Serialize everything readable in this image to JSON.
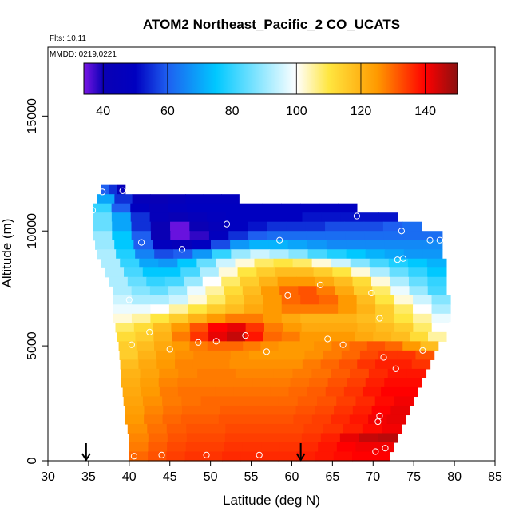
{
  "chart_data": {
    "type": "heatmap",
    "title": "ATOM2 Northeast_Pacific_2 CO_UCATS",
    "info_lines": [
      "Flts: 10,11",
      "MMDD: 0219,0221"
    ],
    "xlabel": "Latitude (deg N)",
    "ylabel": "Altitude (m)",
    "xlim": [
      30,
      85
    ],
    "ylim": [
      0,
      18000
    ],
    "x_ticks": [
      "30",
      "35",
      "40",
      "45",
      "50",
      "55",
      "60",
      "65",
      "70",
      "75",
      "80",
      "85"
    ],
    "y_ticks": [
      "0",
      "5000",
      "10000",
      "15000"
    ],
    "colorbar": {
      "range": [
        34,
        150
      ],
      "ticks": [
        "40",
        "60",
        "80",
        "100",
        "120",
        "140"
      ],
      "stops": [
        "#7b16e6",
        "#0a00b4",
        "#1e5ff0",
        "#00c8ff",
        "#ffffff",
        "#ffe640",
        "#ff9a00",
        "#ff0000",
        "#8b1010"
      ]
    },
    "colormap": [
      {
        "v": 34,
        "color": "#7b16e6"
      },
      {
        "v": 40,
        "color": "#0a00b4"
      },
      {
        "v": 50,
        "color": "#0000c0"
      },
      {
        "v": 60,
        "color": "#1e5ff0"
      },
      {
        "v": 75,
        "color": "#00c8ff"
      },
      {
        "v": 100,
        "color": "#ffffff"
      },
      {
        "v": 110,
        "color": "#ffe640"
      },
      {
        "v": 125,
        "color": "#ff9a00"
      },
      {
        "v": 140,
        "color": "#ff0000"
      },
      {
        "v": 150,
        "color": "#8b1010"
      }
    ],
    "profiles": [
      {
        "alt_bottom": 11600,
        "lat_min": 36.5,
        "lat_max": 39.5,
        "values": [
          60,
          55,
          45
        ]
      },
      {
        "alt_bottom": 11200,
        "lat_min": 36.0,
        "lat_max": 53.5,
        "values": [
          70,
          55,
          45,
          42,
          45,
          48,
          48,
          48
        ]
      },
      {
        "alt_bottom": 10800,
        "lat_min": 35.5,
        "lat_max": 68.0,
        "values": [
          80,
          60,
          50,
          45,
          48,
          50,
          50,
          50,
          50,
          50,
          50,
          50,
          50,
          50
        ]
      },
      {
        "alt_bottom": 10400,
        "lat_min": 35.5,
        "lat_max": 73.0,
        "values": [
          85,
          70,
          55,
          45,
          42,
          45,
          48,
          50,
          50,
          50,
          50,
          52,
          52,
          52,
          52,
          52
        ]
      },
      {
        "alt_bottom": 10000,
        "lat_min": 35.5,
        "lat_max": 76.0,
        "values": [
          85,
          70,
          55,
          40,
          35,
          40,
          45,
          50,
          52,
          55,
          55,
          55,
          58,
          58,
          58,
          60,
          62
        ]
      },
      {
        "alt_bottom": 9600,
        "lat_min": 35.5,
        "lat_max": 78.5,
        "values": [
          90,
          75,
          60,
          40,
          35,
          38,
          48,
          55,
          60,
          62,
          62,
          62,
          62,
          62,
          62,
          62,
          62,
          62
        ]
      },
      {
        "alt_bottom": 9200,
        "lat_min": 35.8,
        "lat_max": 78.5,
        "values": [
          90,
          75,
          60,
          48,
          45,
          50,
          58,
          68,
          72,
          72,
          70,
          68,
          66,
          66,
          66,
          66,
          66,
          66
        ]
      },
      {
        "alt_bottom": 8800,
        "lat_min": 36.0,
        "lat_max": 78.5,
        "values": [
          92,
          78,
          65,
          58,
          60,
          68,
          80,
          90,
          95,
          92,
          88,
          82,
          78,
          75,
          72,
          70,
          68,
          68
        ]
      },
      {
        "alt_bottom": 8400,
        "lat_min": 36.5,
        "lat_max": 79.0,
        "values": [
          92,
          80,
          70,
          68,
          75,
          85,
          95,
          102,
          108,
          110,
          108,
          102,
          95,
          88,
          82,
          78,
          75,
          72
        ]
      },
      {
        "alt_bottom": 8000,
        "lat_min": 37.0,
        "lat_max": 79.0,
        "values": [
          92,
          82,
          75,
          75,
          82,
          92,
          102,
          110,
          115,
          118,
          118,
          115,
          110,
          102,
          92,
          85,
          80,
          75
        ]
      },
      {
        "alt_bottom": 7600,
        "lat_min": 37.5,
        "lat_max": 79.0,
        "values": [
          92,
          85,
          80,
          82,
          90,
          100,
          108,
          115,
          120,
          125,
          125,
          122,
          118,
          112,
          102,
          92,
          85,
          80
        ]
      },
      {
        "alt_bottom": 7200,
        "lat_min": 38.0,
        "lat_max": 79.0,
        "values": [
          92,
          88,
          85,
          90,
          98,
          105,
          112,
          118,
          125,
          130,
          132,
          128,
          122,
          115,
          108,
          98,
          90,
          82
        ]
      },
      {
        "alt_bottom": 6800,
        "lat_min": 38.0,
        "lat_max": 79.5,
        "values": [
          95,
          92,
          92,
          95,
          102,
          108,
          115,
          120,
          125,
          130,
          132,
          130,
          125,
          118,
          110,
          102,
          95,
          88
        ]
      },
      {
        "alt_bottom": 6400,
        "lat_min": 38.0,
        "lat_max": 79.5,
        "values": [
          98,
          98,
          100,
          105,
          110,
          115,
          118,
          122,
          125,
          128,
          128,
          128,
          125,
          120,
          115,
          108,
          100,
          92
        ]
      },
      {
        "alt_bottom": 6000,
        "lat_min": 38.0,
        "lat_max": 79.5,
        "values": [
          102,
          105,
          110,
          115,
          120,
          125,
          128,
          128,
          125,
          122,
          120,
          120,
          120,
          118,
          115,
          110,
          105,
          98
        ]
      },
      {
        "alt_bottom": 5600,
        "lat_min": 38.3,
        "lat_max": 79.5,
        "values": [
          108,
          112,
          118,
          125,
          132,
          140,
          142,
          135,
          128,
          125,
          122,
          122,
          122,
          120,
          118,
          115,
          108,
          100
        ]
      },
      {
        "alt_bottom": 5200,
        "lat_min": 38.5,
        "lat_max": 79.0,
        "values": [
          112,
          115,
          120,
          128,
          135,
          142,
          145,
          138,
          130,
          128,
          125,
          125,
          125,
          122,
          120,
          118,
          112,
          105
        ]
      },
      {
        "alt_bottom": 4800,
        "lat_min": 38.7,
        "lat_max": 78.0,
        "values": [
          115,
          118,
          122,
          125,
          128,
          130,
          130,
          128,
          126,
          125,
          125,
          126,
          128,
          130,
          132,
          130,
          125,
          118
        ]
      },
      {
        "alt_bottom": 4400,
        "lat_min": 38.8,
        "lat_max": 77.5,
        "values": [
          115,
          120,
          124,
          126,
          127,
          127,
          126,
          125,
          125,
          125,
          126,
          128,
          130,
          133,
          135,
          135,
          132
        ]
      },
      {
        "alt_bottom": 4000,
        "lat_min": 38.9,
        "lat_max": 77.0,
        "values": [
          118,
          122,
          125,
          127,
          127,
          127,
          126,
          126,
          126,
          126,
          128,
          130,
          132,
          135,
          137,
          137,
          135
        ]
      },
      {
        "alt_bottom": 3600,
        "lat_min": 39.0,
        "lat_max": 76.5,
        "values": [
          120,
          123,
          126,
          127,
          128,
          128,
          127,
          127,
          127,
          128,
          129,
          131,
          133,
          136,
          138,
          138
        ]
      },
      {
        "alt_bottom": 3200,
        "lat_min": 39.0,
        "lat_max": 76.0,
        "values": [
          121,
          124,
          127,
          128,
          128,
          128,
          128,
          128,
          128,
          129,
          130,
          132,
          134,
          137,
          139,
          139
        ]
      },
      {
        "alt_bottom": 2800,
        "lat_min": 39.2,
        "lat_max": 75.5,
        "values": [
          122,
          125,
          128,
          129,
          129,
          129,
          129,
          129,
          129,
          130,
          131,
          133,
          135,
          138,
          140,
          140
        ]
      },
      {
        "alt_bottom": 2400,
        "lat_min": 39.3,
        "lat_max": 75.0,
        "values": [
          123,
          126,
          128,
          129,
          130,
          130,
          130,
          130,
          130,
          131,
          132,
          134,
          136,
          139,
          141
        ]
      },
      {
        "alt_bottom": 2000,
        "lat_min": 39.5,
        "lat_max": 74.5,
        "values": [
          124,
          127,
          129,
          130,
          130,
          131,
          131,
          131,
          131,
          132,
          133,
          135,
          137,
          140,
          142
        ]
      },
      {
        "alt_bottom": 1600,
        "lat_min": 39.5,
        "lat_max": 74.0,
        "values": [
          125,
          128,
          130,
          131,
          131,
          132,
          132,
          132,
          132,
          133,
          134,
          136,
          138,
          141,
          142
        ]
      },
      {
        "alt_bottom": 1200,
        "lat_min": 39.8,
        "lat_max": 73.5,
        "values": [
          126,
          129,
          131,
          132,
          132,
          133,
          133,
          133,
          133,
          134,
          135,
          137,
          139,
          141
        ]
      },
      {
        "alt_bottom": 800,
        "lat_min": 40.0,
        "lat_max": 73.0,
        "values": [
          127,
          130,
          132,
          133,
          133,
          134,
          134,
          134,
          134,
          135,
          137,
          142,
          145,
          146
        ]
      },
      {
        "alt_bottom": 400,
        "lat_min": 40.0,
        "lat_max": 72.5,
        "values": [
          128,
          131,
          133,
          134,
          134,
          135,
          135,
          135,
          135,
          136,
          138,
          140,
          141,
          141
        ]
      },
      {
        "alt_bottom": 0,
        "lat_min": 40.0,
        "lat_max": 72.0,
        "values": [
          130,
          132,
          134,
          135,
          135,
          136,
          136,
          136,
          136,
          137,
          138,
          139,
          140,
          140
        ]
      }
    ],
    "sample_points": [
      [
        35.5,
        10900
      ],
      [
        36.7,
        11700
      ],
      [
        39.2,
        11750
      ],
      [
        41.5,
        9500
      ],
      [
        46.5,
        9200
      ],
      [
        52.0,
        10300
      ],
      [
        58.5,
        9600
      ],
      [
        68.0,
        10650
      ],
      [
        73.5,
        10000
      ],
      [
        73.0,
        8750
      ],
      [
        73.7,
        8800
      ],
      [
        77.0,
        9600
      ],
      [
        78.2,
        9600
      ],
      [
        40.0,
        7000
      ],
      [
        59.5,
        7200
      ],
      [
        63.5,
        7650
      ],
      [
        69.8,
        7300
      ],
      [
        70.8,
        6200
      ],
      [
        42.5,
        5600
      ],
      [
        40.3,
        5050
      ],
      [
        45.0,
        4850
      ],
      [
        48.5,
        5150
      ],
      [
        50.7,
        5200
      ],
      [
        54.3,
        5450
      ],
      [
        56.9,
        4750
      ],
      [
        64.4,
        5300
      ],
      [
        66.3,
        5050
      ],
      [
        71.3,
        4500
      ],
      [
        72.8,
        4000
      ],
      [
        76.1,
        4800
      ],
      [
        70.8,
        1950
      ],
      [
        70.6,
        1700
      ],
      [
        40.6,
        200
      ],
      [
        44.0,
        250
      ],
      [
        49.5,
        250
      ],
      [
        56.0,
        250
      ],
      [
        70.3,
        400
      ],
      [
        71.5,
        550
      ],
      [
        79.5,
        5900
      ]
    ],
    "arrows": [
      34.7,
      61.1
    ]
  }
}
